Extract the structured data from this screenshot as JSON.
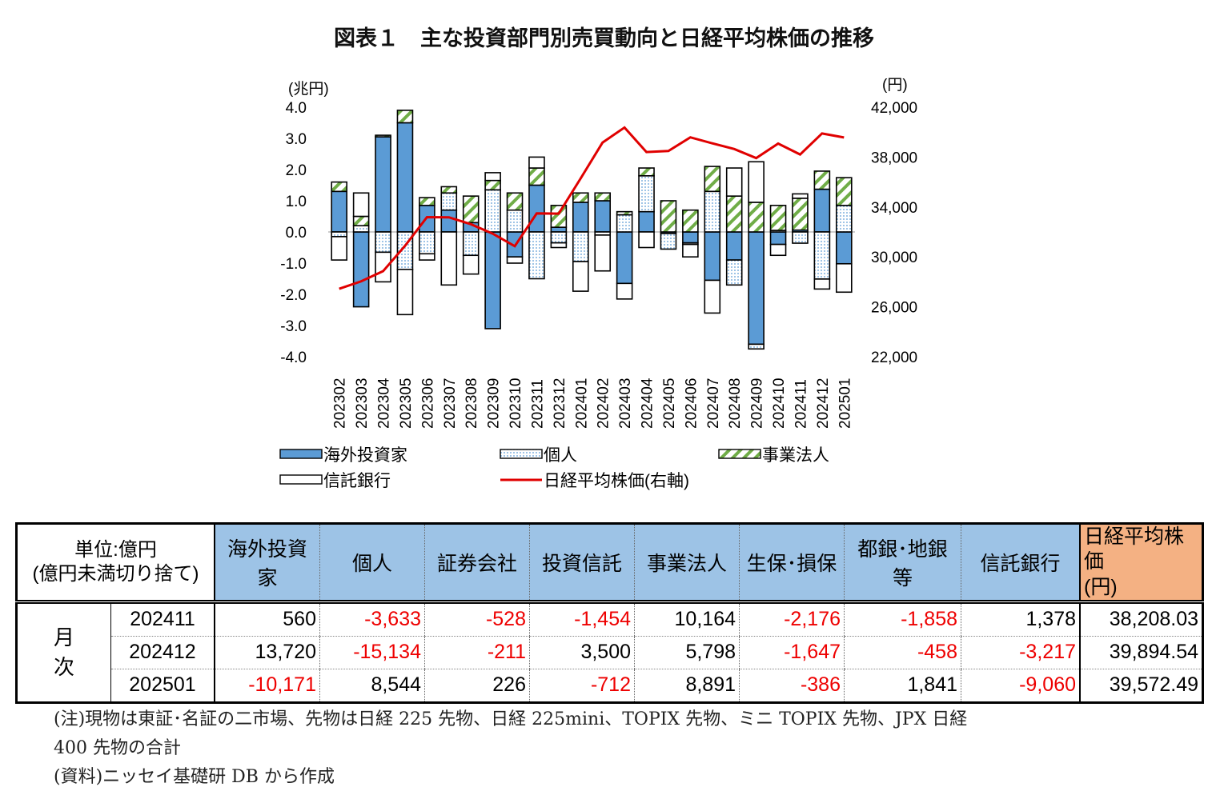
{
  "title": "図表１　主な投資部門別売買動向と日経平均株価の推移",
  "chart_data": {
    "type": "bar",
    "subtype": "stacked bar + line (secondary axis)",
    "left_axis_label": "(兆円)",
    "right_axis_label": "(円)",
    "ylim": [
      -4,
      4
    ],
    "y_ticks": [
      "4.0",
      "3.0",
      "2.0",
      "1.0",
      "0.0",
      "-1.0",
      "-2.0",
      "-3.0",
      "-4.0"
    ],
    "y2lim": [
      22000,
      42000
    ],
    "y2_ticks": [
      "42,000",
      "38,000",
      "34,000",
      "30,000",
      "26,000",
      "22,000"
    ],
    "categories": [
      "202302",
      "202303",
      "202304",
      "202305",
      "202306",
      "202307",
      "202308",
      "202309",
      "202310",
      "202311",
      "202312",
      "202401",
      "202402",
      "202403",
      "202404",
      "202405",
      "202406",
      "202407",
      "202408",
      "202409",
      "202410",
      "202411",
      "202412",
      "202501"
    ],
    "series": [
      {
        "name": "海外投資家",
        "type": "bar",
        "color": "#5b9bd5",
        "values": [
          1.3,
          -2.4,
          3.05,
          3.5,
          0.85,
          0.7,
          0.3,
          -3.1,
          -0.8,
          1.5,
          0.15,
          0.95,
          1.0,
          -1.65,
          0.65,
          -0.05,
          -0.35,
          -1.55,
          -0.9,
          -3.6,
          -0.4,
          0.06,
          1.37,
          -1.02
        ]
      },
      {
        "name": "個人",
        "type": "bar",
        "color": "#dbe8f5",
        "values": [
          -0.15,
          0.2,
          -0.65,
          -1.2,
          -0.7,
          0.55,
          -0.75,
          1.35,
          0.7,
          -1.5,
          -0.35,
          -0.95,
          -0.1,
          0.55,
          1.15,
          -0.5,
          -0.05,
          1.3,
          -0.8,
          -0.15,
          0.05,
          -0.36,
          -1.51,
          0.85
        ]
      },
      {
        "name": "事業法人",
        "type": "bar",
        "color": "#70ad47",
        "values": [
          0.3,
          0.3,
          0.05,
          0.4,
          0.25,
          0.2,
          0.85,
          0.3,
          0.55,
          0.55,
          0.7,
          0.3,
          0.25,
          0.1,
          0.25,
          1.0,
          0.7,
          0.8,
          1.15,
          0.95,
          0.8,
          1.02,
          0.58,
          0.89
        ]
      },
      {
        "name": "信託銀行",
        "type": "bar",
        "color": "#ffffff",
        "values": [
          -0.75,
          0.75,
          -0.95,
          -1.45,
          -0.2,
          -1.7,
          -0.6,
          0.25,
          -0.2,
          0.35,
          -0.15,
          -0.95,
          -1.15,
          -0.5,
          -0.5,
          0,
          -0.4,
          -1.05,
          0.9,
          1.3,
          -0.35,
          0.14,
          -0.32,
          -0.91
        ]
      },
      {
        "name": "日経平均株価(右軸)",
        "type": "line",
        "color": "#e00000",
        "axis": "right",
        "values": [
          27446,
          28041,
          28856,
          30887,
          33189,
          33172,
          32619,
          31857,
          30858,
          33486,
          33464,
          36286,
          39166,
          40369,
          38405,
          38487,
          39583,
          39101,
          38647,
          37919,
          39081,
          38208,
          39894,
          39572
        ]
      }
    ]
  },
  "table": {
    "unit": "単位:億円",
    "unit2": "(億円未満切り捨て)",
    "headers": [
      "海外投資家",
      "個人",
      "証券会社",
      "投資信託",
      "事業法人",
      "生保･損保",
      "都銀･地銀等",
      "信託銀行"
    ],
    "nikkei_header": "日経平均株価",
    "nikkei_header2": "(円)",
    "period_label_1": "月",
    "period_label_2": "次",
    "rows": [
      {
        "ym": "202411",
        "cells": [
          "560",
          "-3,633",
          "-528",
          "-1,454",
          "10,164",
          "-2,176",
          "-1,858",
          "1,378"
        ],
        "nikkei": "38,208.03"
      },
      {
        "ym": "202412",
        "cells": [
          "13,720",
          "-15,134",
          "-211",
          "3,500",
          "5,798",
          "-1,647",
          "-458",
          "-3,217"
        ],
        "nikkei": "39,894.54"
      },
      {
        "ym": "202501",
        "cells": [
          "-10,171",
          "8,544",
          "226",
          "-712",
          "8,891",
          "-386",
          "1,841",
          "-9,060"
        ],
        "nikkei": "39,572.49"
      }
    ]
  },
  "notes": [
    "(注)現物は東証･名証の二市場、先物は日経 225 先物、日経 225mini、TOPIX 先物、ミニ TOPIX 先物、JPX 日経",
    "400 先物の合計",
    "(資料)ニッセイ基礎研 DB から作成"
  ]
}
